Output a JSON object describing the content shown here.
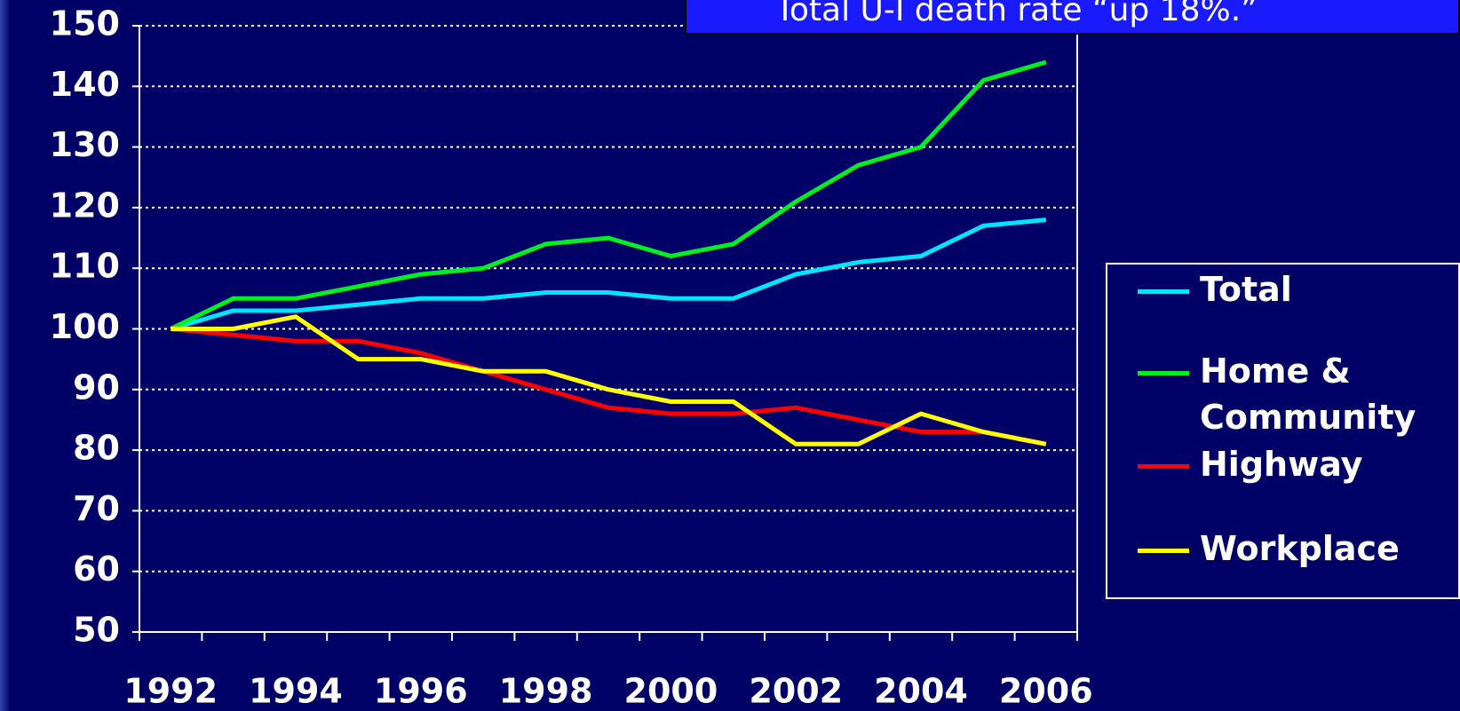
{
  "chart_data": {
    "type": "line",
    "title": "Total U-I death rate “up 18%.”",
    "categories": [
      "1992",
      null,
      "1994",
      null,
      "1996",
      null,
      "1998",
      null,
      "2000",
      null,
      "2002",
      null,
      "2004",
      null,
      "2006"
    ],
    "series": [
      {
        "name": "Total",
        "color": "#00e5ff",
        "values": [
          100,
          103,
          103,
          104,
          105,
          105,
          106,
          106,
          105,
          105,
          109,
          111,
          112,
          117,
          118
        ]
      },
      {
        "name": "Home & Community",
        "color": "#00ee22",
        "values": [
          100,
          105,
          105,
          107,
          109,
          110,
          114,
          115,
          112,
          114,
          121,
          127,
          130,
          141,
          144
        ]
      },
      {
        "name": "Highway",
        "color": "#ff0000",
        "values": [
          100,
          99,
          98,
          98,
          96,
          93,
          90,
          87,
          86,
          86,
          87,
          85,
          83,
          83,
          81
        ]
      },
      {
        "name": "Workplace",
        "color": "#ffff00",
        "values": [
          100,
          100,
          102,
          95,
          95,
          93,
          93,
          90,
          88,
          88,
          81,
          81,
          86,
          83,
          81
        ]
      }
    ],
    "ylim": [
      50,
      150
    ],
    "yticks": [
      50,
      60,
      70,
      80,
      90,
      100,
      110,
      120,
      130,
      140,
      150
    ],
    "grid": true,
    "legend": "right"
  }
}
